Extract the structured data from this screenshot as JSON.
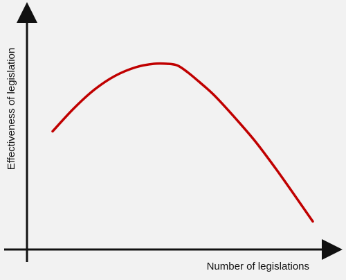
{
  "chart_data": {
    "type": "line",
    "xlabel": "Number of legislations",
    "ylabel": "Effectiveness of legislation",
    "grid": false,
    "axis_ticks": false,
    "xlim": [
      0,
      100
    ],
    "ylim": [
      0,
      100
    ],
    "series": [
      {
        "x": [
          0,
          8,
          16,
          24,
          32,
          39,
          44,
          48,
          52,
          56,
          62,
          70,
          78,
          86,
          94,
          100
        ],
        "y": [
          53,
          66,
          77,
          85,
          90,
          92,
          92,
          91,
          87,
          82,
          74,
          61,
          47,
          31,
          14,
          1
        ],
        "color": "#c00000"
      }
    ],
    "colors": {
      "background": "#f2f2f2",
      "axis": "#111111",
      "curve": "#c00000"
    }
  }
}
